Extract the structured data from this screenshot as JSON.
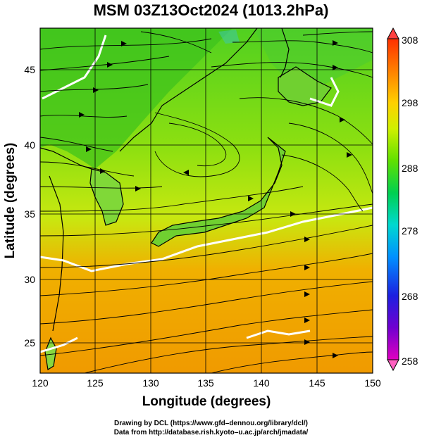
{
  "title": "MSM 03Z13Oct2024 (1013.2hPa)",
  "x_axis": {
    "label": "Longitude (degrees)",
    "ticks": [
      "120",
      "125",
      "130",
      "135",
      "140",
      "145",
      "150"
    ],
    "range": [
      120,
      150
    ]
  },
  "y_axis": {
    "label": "Latitude  (degrees)",
    "ticks": [
      "25",
      "30",
      "35",
      "40",
      "45"
    ],
    "range": [
      22.5,
      47.5
    ]
  },
  "colorbar": {
    "ticks": [
      "308",
      "298",
      "288",
      "278",
      "268",
      "258"
    ],
    "range": [
      258,
      308
    ],
    "colors": [
      "#ff3fa0",
      "#c000c8",
      "#3c00c8",
      "#0040ff",
      "#00b4ff",
      "#00e0c0",
      "#00d050",
      "#60e000",
      "#c8f000",
      "#fff000",
      "#ffc000",
      "#ff8000",
      "#ff4000"
    ]
  },
  "map": {
    "field": "temperature with streamlines",
    "gridlines": true
  },
  "credits": {
    "line1": "Drawing by DCL (https://www.gfd–dennou.org/library/dcl/)",
    "line2": "Data from http://database.rish.kyoto–u.ac.jp/arch/jmadata/"
  }
}
